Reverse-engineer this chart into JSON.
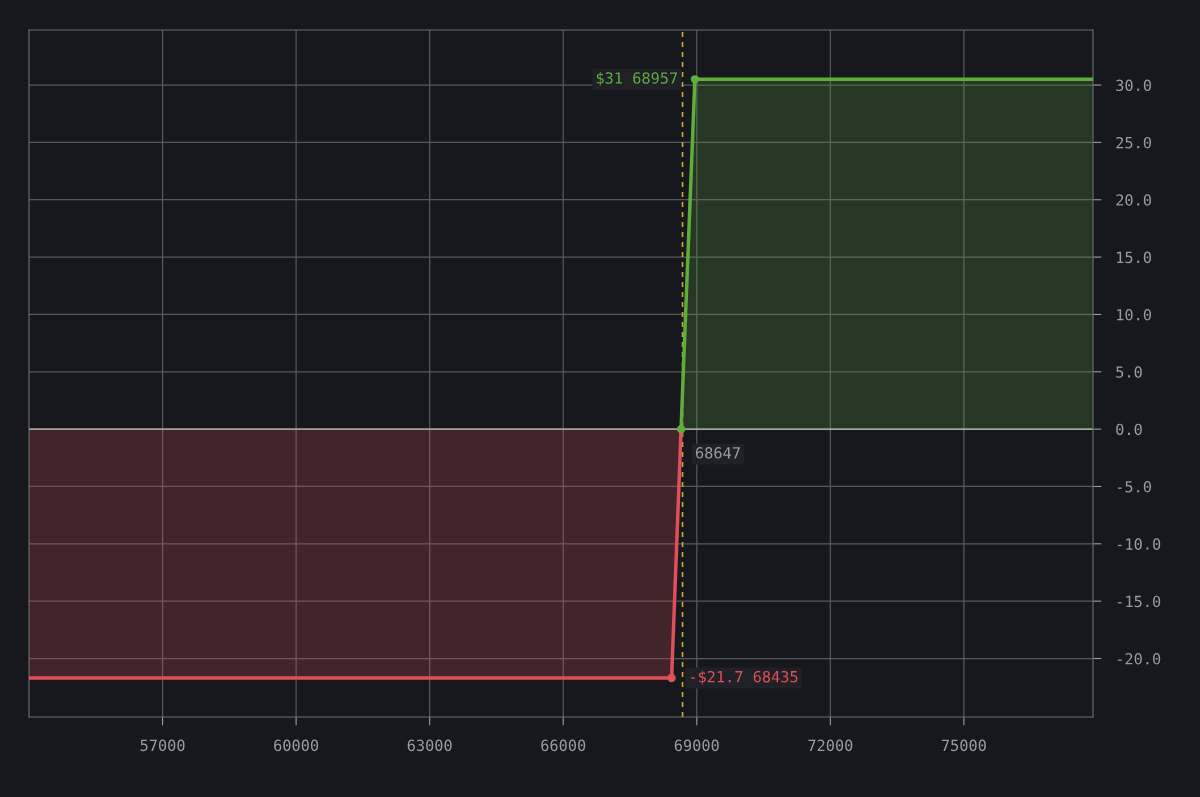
{
  "chart_data": {
    "type": "area",
    "series": [
      {
        "color": "#e0505a",
        "x": [
          54000,
          68435,
          68647
        ],
        "values": [
          -21.7,
          -21.7,
          0
        ]
      },
      {
        "color": "#5fae3c",
        "x": [
          68647,
          68957,
          77900
        ],
        "values": [
          0,
          30.5,
          30.5
        ]
      }
    ],
    "xlim": [
      54000,
      77900
    ],
    "ylim": [
      -25.1,
      34.8
    ],
    "xticks": [
      57000,
      60000,
      63000,
      66000,
      69000,
      72000,
      75000
    ],
    "yticks": [
      {
        "value": -20,
        "label": "-20.0"
      },
      {
        "value": -15,
        "label": "-15.0"
      },
      {
        "value": -10,
        "label": "-10.0"
      },
      {
        "value": -5,
        "label": "-5.0"
      },
      {
        "value": 0,
        "label": "0.0"
      },
      {
        "value": 5,
        "label": "5.0"
      },
      {
        "value": 10,
        "label": "10.0"
      },
      {
        "value": 15,
        "label": "15.0"
      },
      {
        "value": 20,
        "label": "20.0"
      },
      {
        "value": 25,
        "label": "25.0"
      },
      {
        "value": 30,
        "label": "30.0"
      }
    ],
    "ref_lines": [
      {
        "axis": "x",
        "value": 68680,
        "color": "#c8a82a",
        "line_style": "dashed"
      }
    ],
    "annotations": [
      {
        "text": "$31 68957",
        "x": 68957,
        "y": 30.5
      },
      {
        "text": "68647",
        "x": 68647,
        "y": 0
      },
      {
        "text": "-$21.7 68435",
        "x": 68435,
        "y": -21.7
      }
    ],
    "grid": true
  }
}
